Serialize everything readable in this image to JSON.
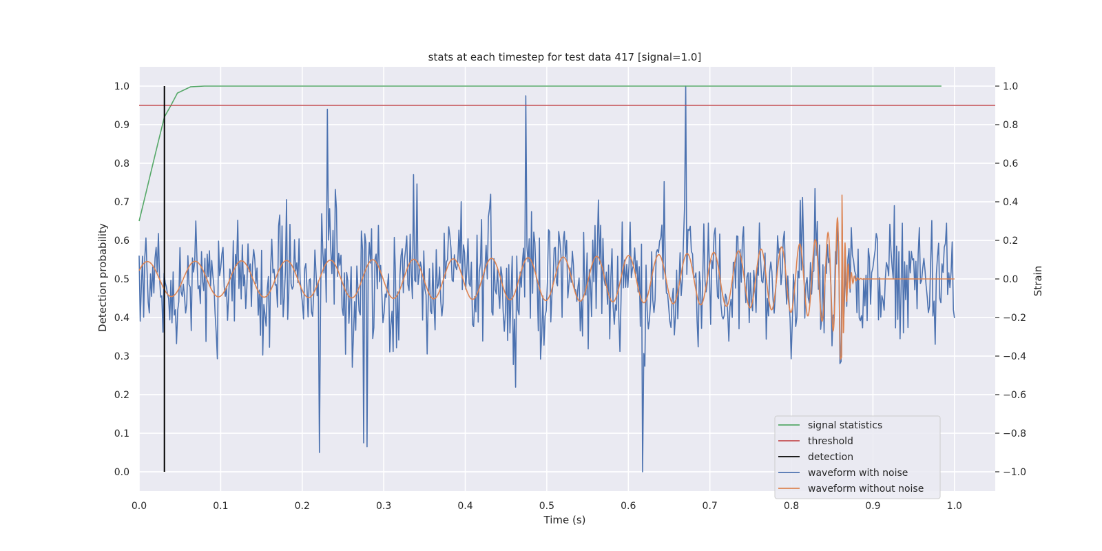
{
  "chart_data": {
    "type": "line",
    "title": "stats at each timestep for test data 417 [signal=1.0]",
    "xlabel": "Time (s)",
    "ylabel_left": "Detection probability",
    "ylabel_right": "Strain",
    "xlim": [
      0.0,
      1.05
    ],
    "ylim_left": [
      -0.05,
      1.05
    ],
    "ylim_right": [
      -1.1,
      1.1
    ],
    "x_ticks": [
      "0.0",
      "0.1",
      "0.2",
      "0.3",
      "0.4",
      "0.5",
      "0.6",
      "0.7",
      "0.8",
      "0.9",
      "1.0"
    ],
    "y_ticks_left": [
      "0.0",
      "0.1",
      "0.2",
      "0.3",
      "0.4",
      "0.5",
      "0.6",
      "0.7",
      "0.8",
      "0.9",
      "1.0"
    ],
    "y_ticks_right": [
      "−1.0",
      "−0.8",
      "−0.6",
      "−0.4",
      "−0.2",
      "0.0",
      "0.2",
      "0.4",
      "0.6",
      "0.8",
      "1.0"
    ],
    "grid": true,
    "legend_position": "lower-right",
    "series": [
      {
        "name": "signal statistics",
        "color": "#55a868",
        "axis": "left",
        "x": [
          0.0,
          0.008,
          0.016,
          0.024,
          0.031,
          0.039,
          0.047,
          0.063,
          0.08,
          0.2,
          0.4,
          0.6,
          0.8,
          0.984
        ],
        "y": [
          0.65,
          0.72,
          0.79,
          0.86,
          0.92,
          0.95,
          0.982,
          0.998,
          1.0,
          1.0,
          1.0,
          1.0,
          1.0,
          1.0
        ]
      },
      {
        "name": "threshold",
        "color": "#c44e52",
        "axis": "left",
        "x": [
          0.0,
          1.05
        ],
        "y": [
          0.95,
          0.95
        ]
      },
      {
        "name": "detection",
        "color": "#000000",
        "axis": "left",
        "x": [
          0.031,
          0.031
        ],
        "y": [
          0.0,
          1.0
        ]
      },
      {
        "name": "waveform with noise",
        "color": "#4c72b0",
        "axis": "right",
        "x_range": [
          0.0,
          1.0
        ],
        "y_range_approx": [
          -1.0,
          1.0
        ],
        "peaks": [
          [
            0.221,
            -0.9
          ],
          [
            0.231,
            0.88
          ],
          [
            0.275,
            -0.85
          ],
          [
            0.279,
            -0.87
          ],
          [
            0.474,
            0.95
          ],
          [
            0.618,
            -1.0
          ],
          [
            0.671,
            1.0
          ]
        ]
      },
      {
        "name": "waveform without noise",
        "color": "#dd8452",
        "axis": "right",
        "x_range": [
          0.0,
          1.0
        ],
        "merger_time": 0.862,
        "amplitude_start": 0.09,
        "amplitude_peak": 0.44
      }
    ]
  }
}
